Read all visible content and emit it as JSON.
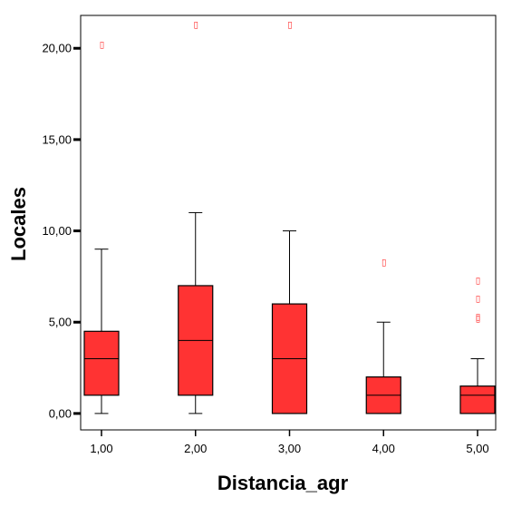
{
  "chart_data": {
    "type": "boxplot",
    "xlabel": "Distancia_agr",
    "ylabel": "Locales",
    "ylim": [
      -0.9,
      21.8
    ],
    "yticks": [
      0,
      5,
      10,
      15,
      20
    ],
    "ytick_labels": [
      "0,00",
      "5,00",
      "10,00",
      "15,00",
      "20,00"
    ],
    "categories": [
      "1,00",
      "2,00",
      "3,00",
      "4,00",
      "5,00"
    ],
    "boxes": [
      {
        "category": "1,00",
        "whisker_low": 0,
        "q1": 1,
        "median": 3,
        "q3": 4.5,
        "whisker_high": 9,
        "outliers": [
          20.2
        ]
      },
      {
        "category": "2,00",
        "whisker_low": 0,
        "q1": 1,
        "median": 4,
        "q3": 7,
        "whisker_high": 11,
        "outliers": [
          21.3
        ]
      },
      {
        "category": "3,00",
        "whisker_low": 0,
        "q1": 0,
        "median": 3,
        "q3": 6,
        "whisker_high": 10,
        "outliers": [
          21.3
        ]
      },
      {
        "category": "4,00",
        "whisker_low": 0,
        "q1": 0,
        "median": 1,
        "q3": 2,
        "whisker_high": 5,
        "outliers": [
          8.3
        ]
      },
      {
        "category": "5,00",
        "whisker_low": 0,
        "q1": 0,
        "median": 1,
        "q3": 1.5,
        "whisker_high": 3,
        "outliers": [
          5.2,
          5.3,
          6.3,
          7.3
        ]
      }
    ],
    "outlier_marker": "▯",
    "grid": false,
    "legend": "none",
    "colors": {
      "box_fill": "#ff3333",
      "outlier": "#ff3333",
      "stroke": "#000000"
    }
  }
}
